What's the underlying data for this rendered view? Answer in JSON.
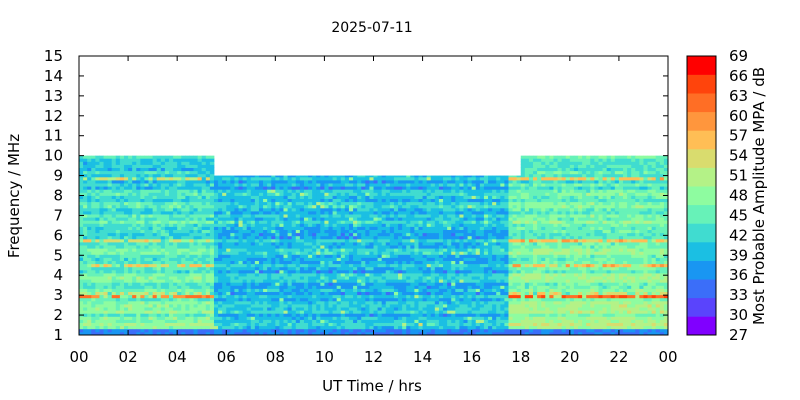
{
  "chart_data": {
    "type": "heatmap",
    "title": "2025-07-11",
    "xlabel": "UT Time / hrs",
    "ylabel": "Frequency / MHz",
    "x_range_hours": [
      0,
      24
    ],
    "y_range_mhz": [
      1,
      15
    ],
    "x_tick_labels": [
      "00",
      "02",
      "04",
      "06",
      "08",
      "10",
      "12",
      "14",
      "16",
      "18",
      "20",
      "22",
      "00"
    ],
    "y_tick_labels": [
      "1",
      "2",
      "3",
      "4",
      "5",
      "6",
      "7",
      "8",
      "9",
      "10",
      "11",
      "12",
      "13",
      "14",
      "15"
    ],
    "colorbar": {
      "label": "Most Probable Amplitude MPA / dB",
      "min": 27,
      "max": 69,
      "step": 3,
      "tick_labels": [
        "27",
        "30",
        "33",
        "36",
        "39",
        "42",
        "45",
        "48",
        "51",
        "54",
        "57",
        "60",
        "63",
        "66",
        "69"
      ],
      "colors": [
        "#8000ff",
        "#5a44fc",
        "#3b6ef9",
        "#1996f2",
        "#1bbfe3",
        "#40dcd0",
        "#67f2b8",
        "#8efca0",
        "#b4f287",
        "#d9dc6e",
        "#ffbe55",
        "#ff963d",
        "#ff6e25",
        "#ff440c",
        "#ff0000"
      ]
    },
    "upper_frequency_limit": [
      {
        "from_hour": 0,
        "to_hour": 5.5,
        "max_mhz": 10
      },
      {
        "from_hour": 5.5,
        "to_hour": 18,
        "max_mhz": 9
      },
      {
        "from_hour": 18,
        "to_hour": 24,
        "max_mhz": 10
      }
    ],
    "typical_mpa_db": [
      {
        "from_hour": 0,
        "to_hour": 5.5,
        "low_mhz_db": 47,
        "high_mhz_db": 41
      },
      {
        "from_hour": 5.5,
        "to_hour": 17.5,
        "low_mhz_db": 39,
        "high_mhz_db": 40
      },
      {
        "from_hour": 17.5,
        "to_hour": 24,
        "low_mhz_db": 49,
        "high_mhz_db": 44
      }
    ],
    "grid": false
  }
}
